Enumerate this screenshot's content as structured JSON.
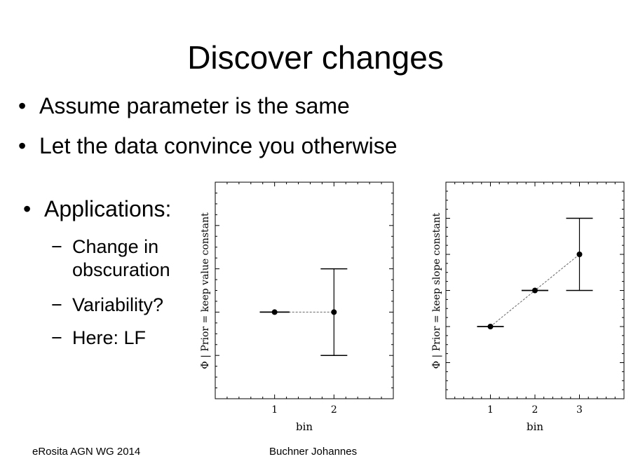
{
  "slide": {
    "title": "Discover changes",
    "bullets": [
      "Assume parameter is the same",
      "Let the data convince you otherwise"
    ],
    "applications_heading": "Applications:",
    "sub_items": [
      "Change in obscuration",
      "Variability?",
      "Here: LF"
    ],
    "footer_left": "eRosita AGN WG 2014",
    "footer_center": "Buchner Johannes",
    "bullet_glyph": "•",
    "dash_glyph": "−"
  },
  "chart_data": [
    {
      "type": "scatter",
      "ylabel": "Φ | Prior = keep value constant",
      "xlabel": "bin",
      "xticks": [
        1,
        2
      ],
      "xlim": [
        0,
        3
      ],
      "ylim": [
        0,
        5
      ],
      "points": [
        {
          "x": 1,
          "y": 2,
          "xerr": 0.25,
          "yerr": null
        },
        {
          "x": 2,
          "y": 2,
          "xerr": null,
          "yerr": 1
        }
      ],
      "connector": "dashed",
      "grid": false
    },
    {
      "type": "scatter",
      "ylabel": "Φ | Prior = keep slope constant",
      "xlabel": "bin",
      "xticks": [
        1,
        2,
        3
      ],
      "xlim": [
        0,
        4
      ],
      "ylim": [
        0,
        6
      ],
      "points": [
        {
          "x": 1,
          "y": 2,
          "xerr": 0.3,
          "yerr": null
        },
        {
          "x": 2,
          "y": 3,
          "xerr": 0.3,
          "yerr": null
        },
        {
          "x": 3,
          "y": 4,
          "xerr": null,
          "yerr": 1
        }
      ],
      "connector": "dashed",
      "grid": false
    }
  ]
}
